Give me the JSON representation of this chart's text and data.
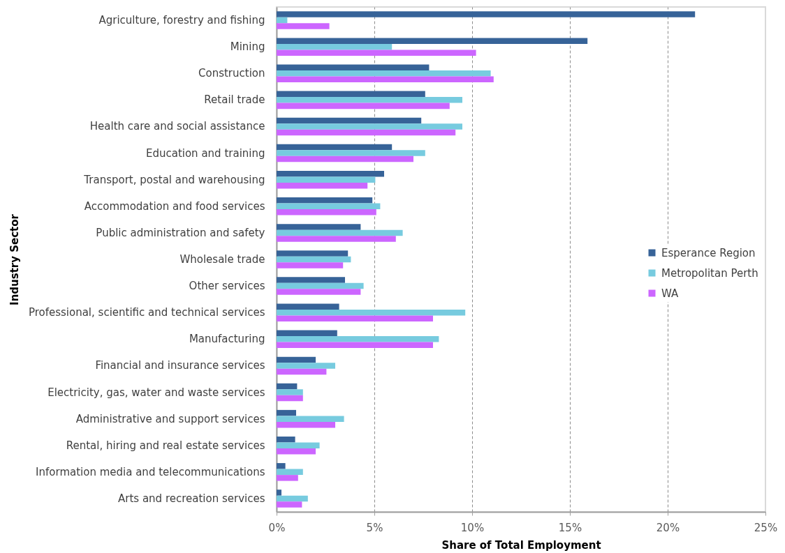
{
  "chart_data": {
    "type": "bar",
    "orientation": "horizontal",
    "xlabel": "Share of Total Employment",
    "ylabel": "Industry Sector",
    "categories": [
      "Agriculture, forestry and fishing",
      "Mining",
      "Construction",
      "Retail trade",
      "Health care and social assistance",
      "Education and training",
      "Transport, postal and warehousing",
      "Accommodation and food services",
      "Public administration and safety",
      "Wholesale trade",
      "Other services",
      "Professional, scientific and technical services",
      "Manufacturing",
      "Financial and insurance services",
      "Electricity, gas, water and waste services",
      "Administrative and support services",
      "Rental, hiring and real estate services",
      "Information media and telecommunications",
      "Arts and recreation services"
    ],
    "series": [
      {
        "name": "Esperance Region",
        "color": "#376398",
        "values": [
          21.4,
          15.9,
          7.8,
          7.6,
          7.4,
          5.9,
          5.5,
          4.9,
          4.3,
          3.65,
          3.5,
          3.2,
          3.1,
          2.0,
          1.05,
          1.0,
          0.95,
          0.45,
          0.25
        ]
      },
      {
        "name": "Metropolitan Perth",
        "color": "#77cbdf",
        "values": [
          0.55,
          5.9,
          10.95,
          9.5,
          9.5,
          7.6,
          5.05,
          5.3,
          6.45,
          3.8,
          4.45,
          9.65,
          8.3,
          3.0,
          1.35,
          3.45,
          2.2,
          1.35,
          1.6
        ]
      },
      {
        "name": "WA",
        "color": "#cc66ff",
        "values": [
          2.7,
          10.2,
          11.1,
          8.85,
          9.15,
          7.0,
          4.65,
          5.1,
          6.1,
          3.4,
          4.3,
          8.0,
          8.0,
          2.55,
          1.35,
          3.0,
          2.0,
          1.1,
          1.3
        ]
      }
    ],
    "xlim": [
      0,
      25
    ],
    "xticks": [
      {
        "value": 0,
        "label": "0%"
      },
      {
        "value": 5,
        "label": "5%"
      },
      {
        "value": 10,
        "label": "10%"
      },
      {
        "value": 15,
        "label": "15%"
      },
      {
        "value": 20,
        "label": "20%"
      },
      {
        "value": 25,
        "label": "25%"
      }
    ],
    "grid": "x",
    "legend": "right"
  }
}
